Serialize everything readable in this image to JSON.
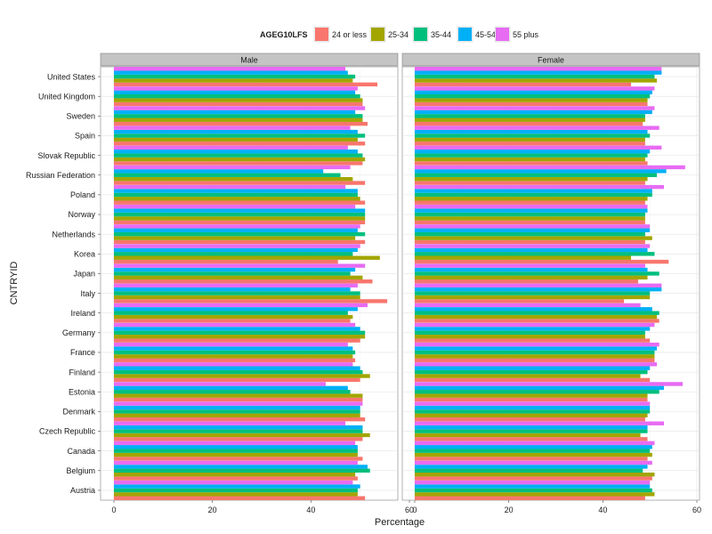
{
  "chart_data": {
    "type": "bar",
    "orientation": "horizontal",
    "title": "",
    "xlabel": "Percentage",
    "ylabel": "CNTRYID",
    "xlim": [
      0,
      60
    ],
    "x_ticks": [
      0,
      20,
      40,
      60
    ],
    "grid": true,
    "legend_title": "AGEG10LFS",
    "legend_position": "top",
    "categories": [
      "United States",
      "United Kingdom",
      "Sweden",
      "Spain",
      "Slovak Republic",
      "Russian Federation",
      "Poland",
      "Norway",
      "Netherlands",
      "Korea",
      "Japan",
      "Italy",
      "Ireland",
      "Germany",
      "France",
      "Finland",
      "Estonia",
      "Denmark",
      "Czech Republic",
      "Canada",
      "Belgium",
      "Austria"
    ],
    "series": [
      {
        "name": "24 or less",
        "color": "#F8766D"
      },
      {
        "name": "25-34",
        "color": "#A3A500"
      },
      {
        "name": "35-44",
        "color": "#00BF7D"
      },
      {
        "name": "45-54",
        "color": "#00B0F6"
      },
      {
        "name": "55 plus",
        "color": "#E76BF3"
      }
    ],
    "panels": [
      {
        "name": "Male",
        "values": [
          [
            53.5,
            48.5,
            49,
            47.5,
            47
          ],
          [
            50.5,
            50.5,
            50,
            49,
            49.5
          ],
          [
            51.5,
            50.5,
            50.5,
            49,
            51
          ],
          [
            51,
            49.5,
            51,
            49.5,
            48
          ],
          [
            50.5,
            51,
            50.5,
            49.5,
            47.5
          ],
          [
            51,
            48.5,
            46,
            42.5,
            48
          ],
          [
            51,
            50,
            49.5,
            49.5,
            47
          ],
          [
            51,
            51,
            51,
            51,
            49
          ],
          [
            51,
            49,
            51,
            49.5,
            50
          ],
          [
            45.5,
            54,
            48.5,
            49.5,
            50
          ],
          [
            52.5,
            50.5,
            48,
            49,
            51
          ],
          [
            55.5,
            50,
            50,
            48,
            49.5
          ],
          [
            48,
            48.5,
            47.5,
            49.5,
            51.5
          ],
          [
            50,
            51,
            51,
            50,
            49
          ],
          [
            49,
            48.5,
            49,
            48.5,
            47.5
          ],
          [
            50,
            52,
            50.5,
            50,
            48.5
          ],
          [
            50.5,
            50.5,
            48,
            47.5,
            43
          ],
          [
            51,
            50,
            50,
            50,
            50.5
          ],
          [
            50.5,
            52,
            50.5,
            50.5,
            47
          ],
          [
            50.5,
            49.5,
            49.5,
            49.5,
            49
          ],
          [
            49.5,
            49,
            52,
            51.5,
            49.5
          ],
          [
            51,
            49.5,
            49.5,
            50,
            48.5
          ]
        ]
      },
      {
        "name": "Female",
        "values": [
          [
            46,
            51.5,
            51,
            52.5,
            52.5
          ],
          [
            49.5,
            49.5,
            50,
            50.5,
            51
          ],
          [
            48.5,
            49,
            49,
            50.5,
            51
          ],
          [
            49,
            49,
            50,
            49.5,
            52
          ],
          [
            49.5,
            49,
            49.5,
            50,
            52.5
          ],
          [
            49,
            49.5,
            51.5,
            53.5,
            57.5
          ],
          [
            49,
            49.5,
            50.5,
            50.5,
            53
          ],
          [
            49,
            49,
            49,
            49.5,
            49.5
          ],
          [
            49,
            50.5,
            49,
            50,
            50
          ],
          [
            54,
            46,
            51,
            49.5,
            50
          ],
          [
            47.5,
            49.5,
            52,
            49.5,
            49
          ],
          [
            44.5,
            50,
            50,
            52.5,
            52.5
          ],
          [
            52,
            51.5,
            52,
            50.5,
            48
          ],
          [
            50,
            49,
            49,
            50,
            51
          ],
          [
            51,
            51,
            51,
            51.5,
            52
          ],
          [
            50,
            48,
            49.5,
            50,
            51.5
          ],
          [
            49.5,
            49.5,
            52,
            53,
            57
          ],
          [
            49,
            49.5,
            50,
            50,
            50
          ],
          [
            49.5,
            48,
            49.5,
            49.5,
            53
          ],
          [
            49.5,
            50.5,
            50,
            50.5,
            51
          ],
          [
            50.5,
            51,
            48.5,
            49.5,
            50.5
          ],
          [
            49,
            51,
            50.5,
            50,
            50
          ]
        ]
      }
    ]
  }
}
